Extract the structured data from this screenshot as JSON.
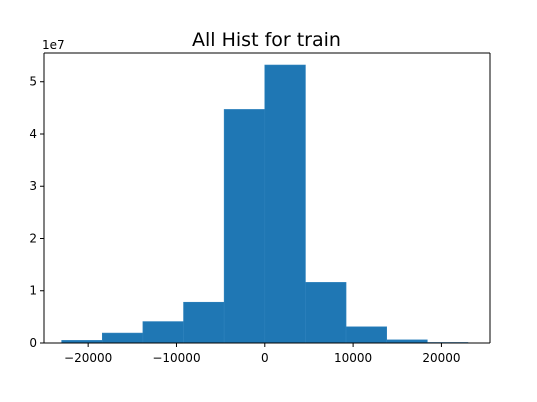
{
  "chart_data": {
    "type": "bar",
    "title": "All Hist for train",
    "xlabel": "",
    "ylabel": "",
    "y_offset_label": "1e7",
    "xlim": [
      -25000,
      25500
    ],
    "ylim": [
      0,
      5.55
    ],
    "x_ticks": [
      -20000,
      -10000,
      0,
      10000,
      20000
    ],
    "x_tick_labels": [
      "−20000",
      "−10000",
      "0",
      "10000",
      "20000"
    ],
    "y_ticks": [
      0,
      1,
      2,
      3,
      4,
      5
    ],
    "y_tick_labels": [
      "0",
      "1",
      "2",
      "3",
      "4",
      "5"
    ],
    "bins": [
      [
        -23000,
        -18400
      ],
      [
        -18400,
        -13800
      ],
      [
        -13800,
        -9200
      ],
      [
        -9200,
        -4600
      ],
      [
        -4600,
        0
      ],
      [
        0,
        4600
      ],
      [
        4600,
        9200
      ],
      [
        9200,
        13800
      ],
      [
        13800,
        18400
      ],
      [
        18400,
        23000
      ]
    ],
    "values": [
      0.05,
      0.19,
      0.41,
      0.78,
      4.47,
      5.32,
      1.16,
      0.31,
      0.06,
      0.01
    ],
    "bar_color": "#1f77b4",
    "edge_color": "#2e82bd",
    "grid": false,
    "legend": "none"
  }
}
